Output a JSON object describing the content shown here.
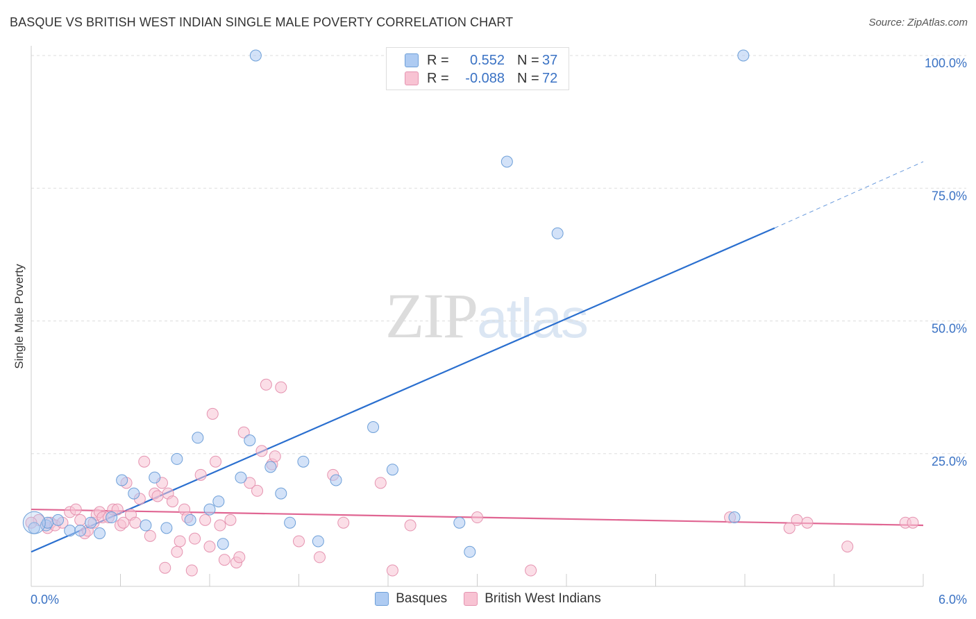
{
  "header": {
    "title": "BASQUE VS BRITISH WEST INDIAN SINGLE MALE POVERTY CORRELATION CHART",
    "source": "Source: ZipAtlas.com"
  },
  "watermark": {
    "zip": "ZIP",
    "atlas": "atlas"
  },
  "legend_top": {
    "rows": [
      {
        "r_label": "R =",
        "r_value": "0.552",
        "n_label": "N =",
        "n_value": "37"
      },
      {
        "r_label": "R =",
        "r_value": "-0.088",
        "n_label": "N =",
        "n_value": "72"
      }
    ]
  },
  "legend_bottom": {
    "basques": "Basques",
    "bwi": "British West Indians"
  },
  "colors": {
    "blue_fill": "#aecbf2",
    "blue_stroke": "#6d9fd8",
    "blue_line": "#2a6fcf",
    "pink_fill": "#f8c3d3",
    "pink_stroke": "#e593b0",
    "pink_line": "#e06592",
    "axis_text": "#3a72c4",
    "grid": "#dddddd"
  },
  "chart_data": {
    "type": "scatter",
    "title": "BASQUE VS BRITISH WEST INDIAN SINGLE MALE POVERTY CORRELATION CHART",
    "xlabel": "",
    "ylabel": "Single Male Poverty",
    "xlim": [
      0,
      6
    ],
    "ylim": [
      0,
      100
    ],
    "x_tick_labels": [
      "0.0%",
      "6.0%"
    ],
    "y_ticks": [
      25,
      50,
      75,
      100
    ],
    "y_tick_labels": [
      "25.0%",
      "50.0%",
      "75.0%",
      "100.0%"
    ],
    "grid": true,
    "legend_position": "top-center",
    "series": [
      {
        "name": "Basques",
        "color": "#aecbf2",
        "r": 0.552,
        "n": 37,
        "trend": {
          "x": [
            0,
            5.0
          ],
          "y": [
            6.5,
            67.5
          ],
          "dash_to_x": 6.0,
          "dash_to_y": 80.0
        },
        "points": [
          [
            0.02,
            11.0
          ],
          [
            0.1,
            11.5
          ],
          [
            0.11,
            12.0
          ],
          [
            0.18,
            12.5
          ],
          [
            0.26,
            10.5
          ],
          [
            0.33,
            10.5
          ],
          [
            0.4,
            12.0
          ],
          [
            0.46,
            10.0
          ],
          [
            0.54,
            13.0
          ],
          [
            0.61,
            20.0
          ],
          [
            0.69,
            17.5
          ],
          [
            0.77,
            11.5
          ],
          [
            0.83,
            20.5
          ],
          [
            0.91,
            11.0
          ],
          [
            0.98,
            24.0
          ],
          [
            1.07,
            12.5
          ],
          [
            1.12,
            28.0
          ],
          [
            1.2,
            14.5
          ],
          [
            1.26,
            16.0
          ],
          [
            1.29,
            8.0
          ],
          [
            1.41,
            20.5
          ],
          [
            1.47,
            27.5
          ],
          [
            1.51,
            100.0
          ],
          [
            1.61,
            22.5
          ],
          [
            1.68,
            17.5
          ],
          [
            1.74,
            12.0
          ],
          [
            1.83,
            23.5
          ],
          [
            1.93,
            8.5
          ],
          [
            2.05,
            20.0
          ],
          [
            2.3,
            30.0
          ],
          [
            2.43,
            22.0
          ],
          [
            2.88,
            12.0
          ],
          [
            2.95,
            6.5
          ],
          [
            3.2,
            80.0
          ],
          [
            3.54,
            66.5
          ],
          [
            4.73,
            13.0
          ],
          [
            4.79,
            100.0
          ]
        ]
      },
      {
        "name": "British West Indians",
        "color": "#f8c3d3",
        "r": -0.088,
        "n": 72,
        "trend": {
          "x": [
            0,
            6.0
          ],
          "y": [
            14.5,
            11.5
          ]
        },
        "points": [
          [
            0.05,
            12.5
          ],
          [
            0.11,
            11.0
          ],
          [
            0.13,
            12.0
          ],
          [
            0.16,
            11.5
          ],
          [
            0.21,
            12.0
          ],
          [
            0.26,
            14.0
          ],
          [
            0.3,
            14.5
          ],
          [
            0.33,
            12.5
          ],
          [
            0.36,
            10.0
          ],
          [
            0.38,
            10.5
          ],
          [
            0.42,
            12.0
          ],
          [
            0.44,
            13.5
          ],
          [
            0.46,
            14.0
          ],
          [
            0.48,
            13.0
          ],
          [
            0.52,
            13.0
          ],
          [
            0.55,
            14.5
          ],
          [
            0.58,
            14.5
          ],
          [
            0.6,
            11.5
          ],
          [
            0.62,
            12.0
          ],
          [
            0.64,
            19.5
          ],
          [
            0.67,
            13.5
          ],
          [
            0.7,
            12.0
          ],
          [
            0.73,
            16.5
          ],
          [
            0.76,
            23.5
          ],
          [
            0.8,
            9.5
          ],
          [
            0.83,
            17.5
          ],
          [
            0.85,
            17.0
          ],
          [
            0.88,
            19.5
          ],
          [
            0.9,
            3.5
          ],
          [
            0.92,
            17.5
          ],
          [
            0.95,
            16.0
          ],
          [
            0.98,
            6.5
          ],
          [
            1.0,
            8.5
          ],
          [
            1.03,
            14.5
          ],
          [
            1.05,
            13.0
          ],
          [
            1.08,
            3.0
          ],
          [
            1.1,
            9.0
          ],
          [
            1.14,
            21.0
          ],
          [
            1.17,
            12.5
          ],
          [
            1.2,
            7.5
          ],
          [
            1.22,
            32.5
          ],
          [
            1.24,
            23.5
          ],
          [
            1.27,
            11.5
          ],
          [
            1.3,
            5.0
          ],
          [
            1.34,
            12.5
          ],
          [
            1.38,
            4.5
          ],
          [
            1.4,
            5.5
          ],
          [
            1.43,
            29.0
          ],
          [
            1.47,
            19.5
          ],
          [
            1.52,
            18.0
          ],
          [
            1.55,
            25.5
          ],
          [
            1.58,
            38.0
          ],
          [
            1.62,
            23.0
          ],
          [
            1.64,
            24.5
          ],
          [
            1.68,
            37.5
          ],
          [
            1.8,
            8.5
          ],
          [
            1.94,
            5.5
          ],
          [
            2.03,
            21.0
          ],
          [
            2.1,
            12.0
          ],
          [
            2.35,
            19.5
          ],
          [
            2.43,
            3.0
          ],
          [
            2.55,
            11.5
          ],
          [
            3.0,
            13.0
          ],
          [
            3.36,
            3.0
          ],
          [
            4.7,
            13.0
          ],
          [
            5.1,
            11.0
          ],
          [
            5.15,
            12.5
          ],
          [
            5.22,
            12.0
          ],
          [
            5.49,
            7.5
          ],
          [
            5.88,
            12.0
          ],
          [
            5.93,
            12.0
          ],
          [
            0.0,
            12.0
          ]
        ]
      }
    ]
  }
}
